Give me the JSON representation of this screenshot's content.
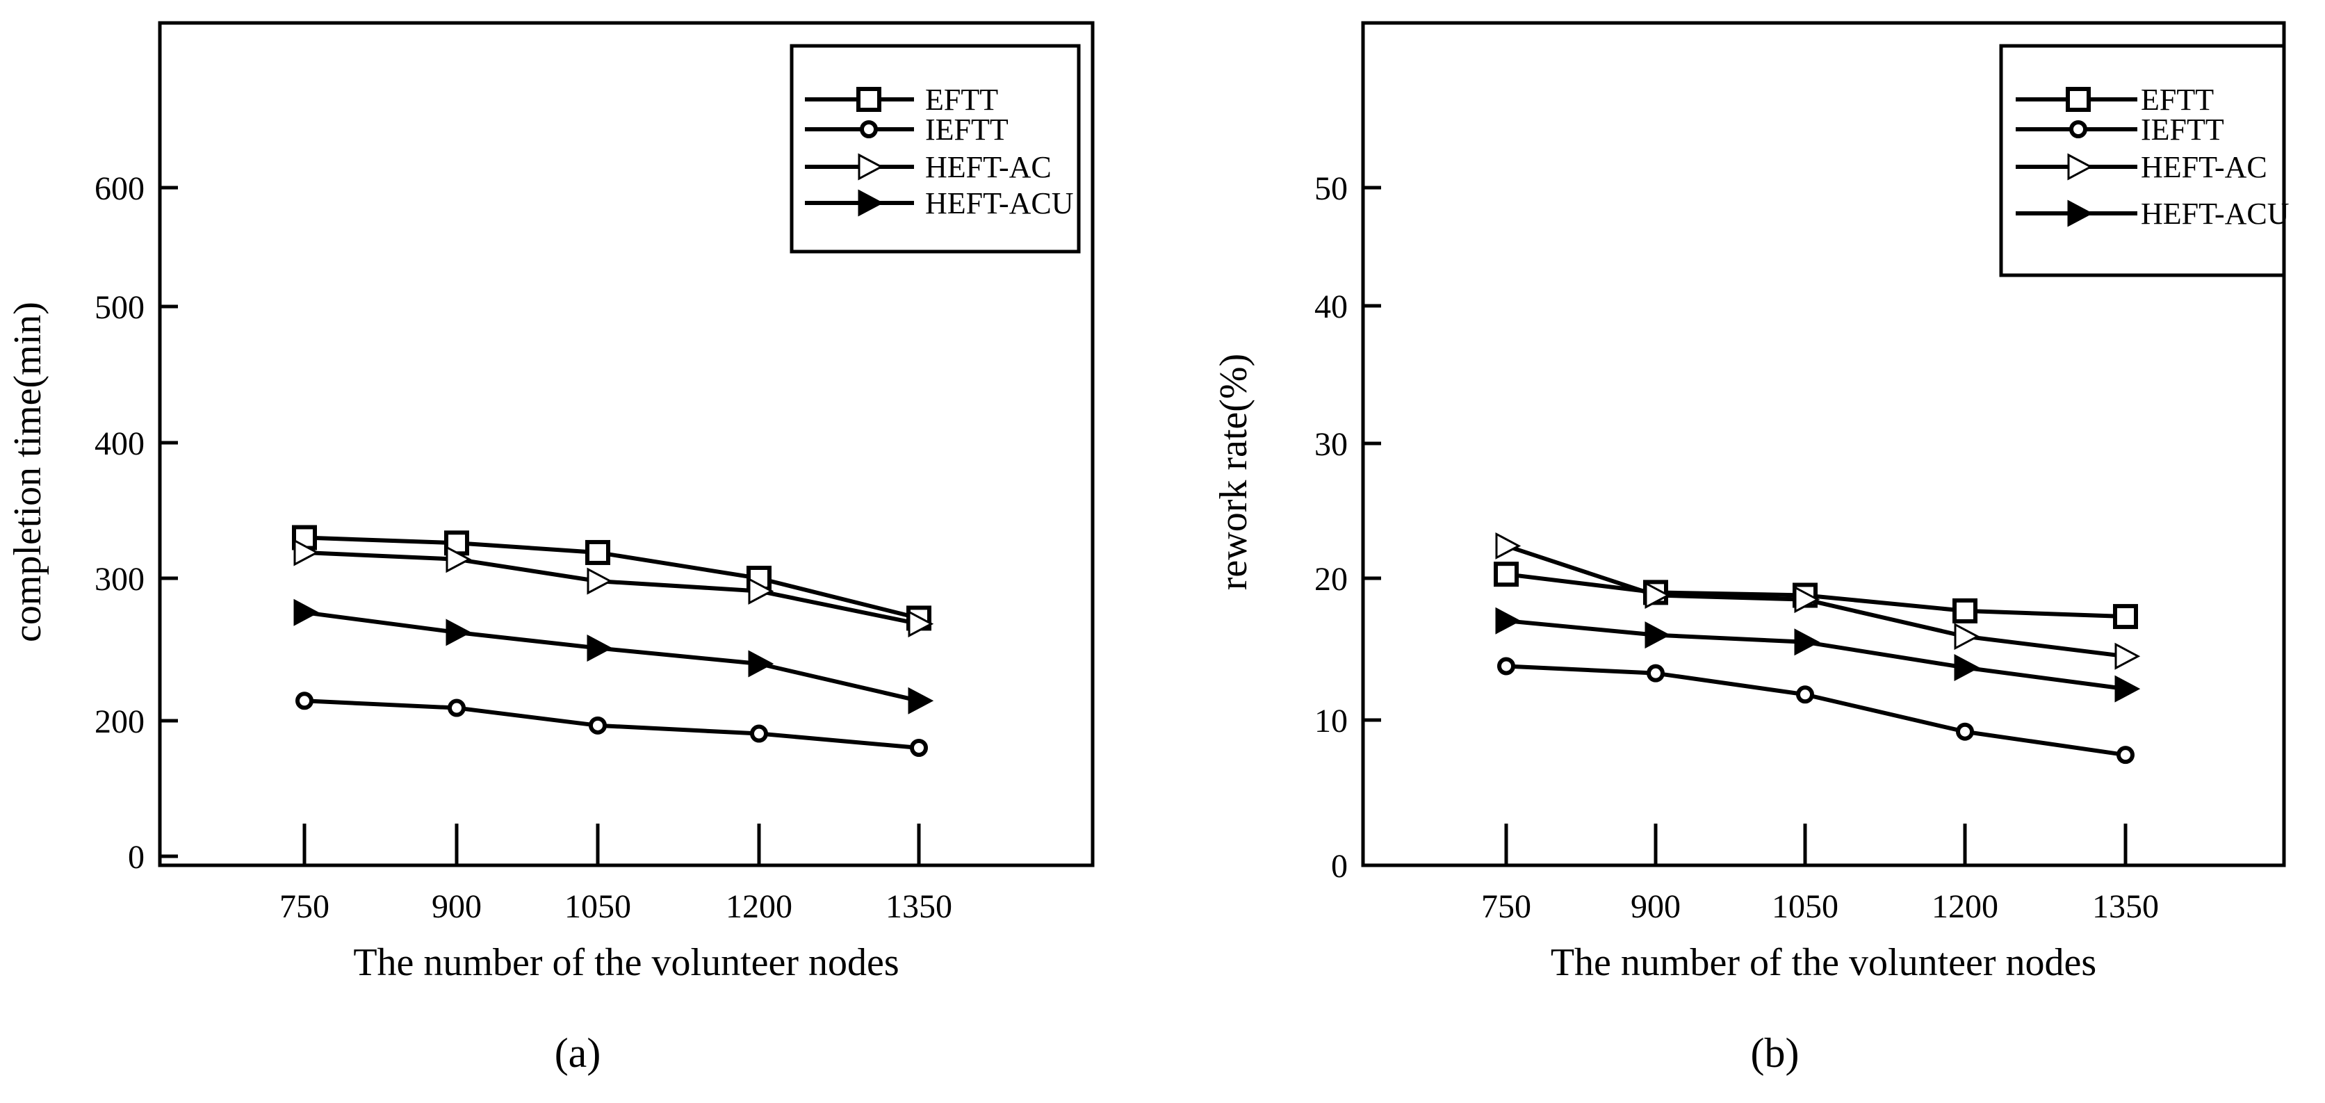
{
  "figure": {
    "panels": [
      "(a)",
      "(b)"
    ]
  },
  "chart_data": [
    {
      "type": "line",
      "panel_label": "(a)",
      "title": "",
      "xlabel": "The number of the volunteer nodes",
      "ylabel": "completion time(min)",
      "x": [
        750,
        900,
        1050,
        1200,
        1350
      ],
      "x_tick_labels": [
        "750",
        "900",
        "1050",
        "1200",
        "1350"
      ],
      "y_tick_labels": [
        "0",
        "200",
        "300",
        "400",
        "500",
        "600"
      ],
      "grid": false,
      "legend": "top-right",
      "series": [
        {
          "name": "EFTT",
          "marker": "square",
          "values": [
            330,
            326,
            319,
            300,
            272
          ]
        },
        {
          "name": "IEFTT",
          "marker": "circle",
          "values": [
            214,
            209,
            193,
            181,
            160
          ]
        },
        {
          "name": "HEFT-AC",
          "marker": "triangle-right-open",
          "values": [
            319,
            314,
            298,
            291,
            268
          ]
        },
        {
          "name": "HEFT-ACU",
          "marker": "triangle-right-filled",
          "values": [
            276,
            262,
            251,
            240,
            214
          ]
        }
      ]
    },
    {
      "type": "line",
      "panel_label": "(b)",
      "title": "",
      "xlabel": "The number of the volunteer nodes",
      "ylabel": "rework rate(%)",
      "x": [
        750,
        900,
        1050,
        1200,
        1350
      ],
      "x_tick_labels": [
        "750",
        "900",
        "1050",
        "1200",
        "1350"
      ],
      "y_tick_labels": [
        "0",
        "10",
        "20",
        "30",
        "40",
        "50"
      ],
      "grid": false,
      "legend": "top-right",
      "series": [
        {
          "name": "EFTT",
          "marker": "square",
          "values": [
            20.3,
            19.0,
            18.8,
            17.7,
            17.3
          ]
        },
        {
          "name": "IEFTT",
          "marker": "circle",
          "values": [
            13.8,
            13.3,
            11.8,
            9.2,
            7.6
          ]
        },
        {
          "name": "HEFT-AC",
          "marker": "triangle-right-open",
          "values": [
            22.4,
            18.8,
            18.5,
            15.9,
            14.5
          ]
        },
        {
          "name": "HEFT-ACU",
          "marker": "triangle-right-filled",
          "values": [
            17.0,
            16.0,
            15.5,
            13.7,
            12.2
          ]
        }
      ]
    }
  ]
}
